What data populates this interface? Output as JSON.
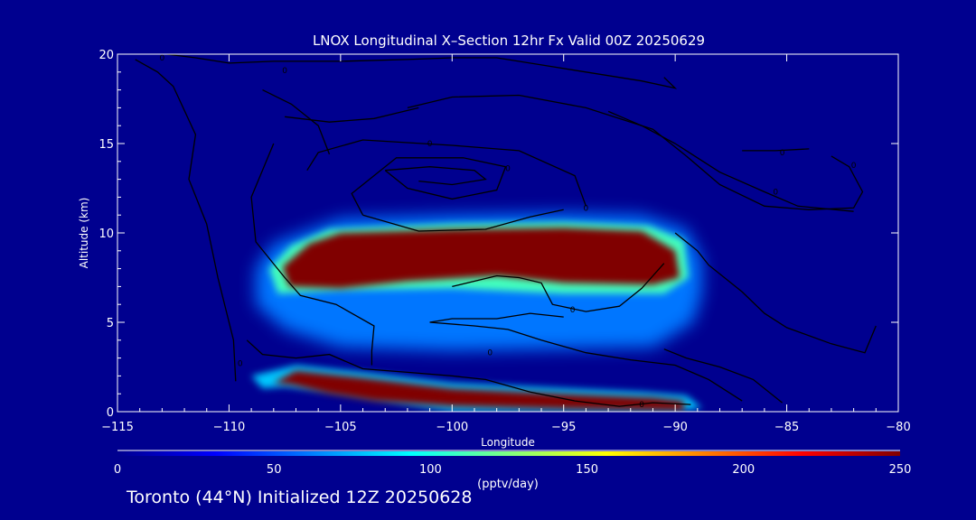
{
  "chart_data": {
    "type": "heatmap",
    "title": "LNOX Longitudinal X–Section 12hr  Fx Valid 00Z 20250629",
    "xlabel": "Longitude",
    "ylabel": "Altitude (km)",
    "xlim": [
      -115,
      -80
    ],
    "ylim": [
      0,
      20
    ],
    "x_ticks": [
      {
        "value": -115,
        "label": "−115"
      },
      {
        "value": -110,
        "label": "−110"
      },
      {
        "value": -105,
        "label": "−105"
      },
      {
        "value": -100,
        "label": "−100"
      },
      {
        "value": -95,
        "label": "−95"
      },
      {
        "value": -90,
        "label": "−90"
      },
      {
        "value": -85,
        "label": "−85"
      },
      {
        "value": -80,
        "label": "−80"
      }
    ],
    "y_ticks": [
      {
        "value": 0,
        "label": "0"
      },
      {
        "value": 5,
        "label": "5"
      },
      {
        "value": 10,
        "label": "10"
      },
      {
        "value": 15,
        "label": "15"
      },
      {
        "value": 20,
        "label": "20"
      }
    ],
    "colorbar": {
      "label": "(pptv/day)",
      "range": [
        0,
        250
      ],
      "ticks": [
        {
          "value": 0,
          "label": "0"
        },
        {
          "value": 50,
          "label": "50"
        },
        {
          "value": 100,
          "label": "100"
        },
        {
          "value": 150,
          "label": "150"
        },
        {
          "value": 200,
          "label": "200"
        },
        {
          "value": 250,
          "label": "250"
        }
      ],
      "colors": [
        "#00008f",
        "#0000ff",
        "#0080ff",
        "#00ffff",
        "#80ff80",
        "#ffff00",
        "#ff8000",
        "#ff0000",
        "#800000"
      ]
    },
    "field_regions": [
      {
        "name": "upper envelope",
        "value": 60,
        "points": [
          [
            -108.8,
            8.0
          ],
          [
            -108.0,
            9.4
          ],
          [
            -106.5,
            10.1
          ],
          [
            -105.0,
            10.8
          ],
          [
            -100.0,
            11.0
          ],
          [
            -95.0,
            11.1
          ],
          [
            -91.5,
            11.0
          ],
          [
            -89.5,
            10.2
          ],
          [
            -88.8,
            8.5
          ],
          [
            -88.8,
            6.6
          ],
          [
            -89.2,
            5.0
          ],
          [
            -91.0,
            3.6
          ],
          [
            -100.0,
            3.4
          ],
          [
            -105.0,
            3.6
          ],
          [
            -107.5,
            4.6
          ],
          [
            -108.8,
            6.0
          ]
        ]
      },
      {
        "name": "upper mid",
        "value": 110,
        "points": [
          [
            -108.2,
            8.0
          ],
          [
            -107.2,
            9.3
          ],
          [
            -105.5,
            10.2
          ],
          [
            -100.0,
            10.5
          ],
          [
            -95.0,
            10.6
          ],
          [
            -91.2,
            10.4
          ],
          [
            -89.6,
            9.6
          ],
          [
            -89.4,
            7.5
          ],
          [
            -90.5,
            6.6
          ],
          [
            -95.0,
            6.6
          ],
          [
            -100.0,
            6.9
          ],
          [
            -105.0,
            6.8
          ],
          [
            -107.8,
            6.6
          ]
        ]
      },
      {
        "name": "upper core",
        "value": 250,
        "points": [
          [
            -107.6,
            8.1
          ],
          [
            -106.4,
            9.4
          ],
          [
            -105.0,
            10.0
          ],
          [
            -100.0,
            10.2
          ],
          [
            -95.0,
            10.3
          ],
          [
            -91.5,
            10.1
          ],
          [
            -90.0,
            9.0
          ],
          [
            -89.8,
            7.5
          ],
          [
            -91.0,
            7.1
          ],
          [
            -95.0,
            7.2
          ],
          [
            -98.0,
            7.6
          ],
          [
            -102.0,
            7.3
          ],
          [
            -105.0,
            6.9
          ],
          [
            -107.3,
            7.0
          ]
        ]
      },
      {
        "name": "lower envelope",
        "value": 80,
        "points": [
          [
            -109.0,
            2.0
          ],
          [
            -107.0,
            2.6
          ],
          [
            -104.0,
            2.2
          ],
          [
            -100.0,
            1.6
          ],
          [
            -95.0,
            1.3
          ],
          [
            -91.5,
            1.1
          ],
          [
            -89.5,
            0.9
          ],
          [
            -88.8,
            0.2
          ],
          [
            -90.0,
            0.0
          ],
          [
            -100.0,
            0.0
          ],
          [
            -103.0,
            0.6
          ],
          [
            -105.5,
            1.1
          ],
          [
            -107.5,
            1.4
          ],
          [
            -108.5,
            1.3
          ]
        ]
      },
      {
        "name": "lower core",
        "value": 250,
        "points": [
          [
            -108.0,
            1.6
          ],
          [
            -107.0,
            2.3
          ],
          [
            -104.0,
            1.9
          ],
          [
            -100.0,
            1.3
          ],
          [
            -95.0,
            1.0
          ],
          [
            -91.0,
            0.8
          ],
          [
            -89.6,
            0.6
          ],
          [
            -89.6,
            0.05
          ],
          [
            -95.0,
            0.15
          ],
          [
            -100.0,
            0.3
          ],
          [
            -103.5,
            0.6
          ],
          [
            -105.5,
            1.0
          ],
          [
            -107.2,
            1.5
          ]
        ]
      }
    ],
    "contours": [
      {
        "points": [
          [
            -114.2,
            19.7
          ],
          [
            -113.2,
            19.0
          ],
          [
            -112.5,
            18.2
          ],
          [
            -111.5,
            15.5
          ],
          [
            -111.8,
            13.0
          ],
          [
            -111.0,
            10.5
          ],
          [
            -110.5,
            7.5
          ],
          [
            -109.8,
            4.0
          ],
          [
            -109.7,
            1.7
          ]
        ]
      },
      {
        "points": [
          [
            -112.8,
            20.0
          ],
          [
            -111.5,
            19.8
          ],
          [
            -110.0,
            19.5
          ],
          [
            -108.0,
            19.6
          ],
          [
            -105.0,
            19.6
          ],
          [
            -102.0,
            19.7
          ],
          [
            -100.0,
            19.8
          ],
          [
            -98.0,
            19.8
          ],
          [
            -96.0,
            19.4
          ],
          [
            -94.0,
            19.0
          ],
          [
            -91.5,
            18.5
          ],
          [
            -90.0,
            18.1
          ],
          [
            -90.5,
            18.7
          ]
        ]
      },
      {
        "points": [
          [
            -102.0,
            17.0
          ],
          [
            -100.0,
            17.6
          ],
          [
            -97.0,
            17.7
          ],
          [
            -94.0,
            17.0
          ],
          [
            -91.0,
            15.8
          ],
          [
            -89.5,
            14.3
          ]
        ]
      },
      {
        "points": [
          [
            -106.5,
            13.5
          ],
          [
            -106.0,
            14.5
          ],
          [
            -104.0,
            15.2
          ],
          [
            -100.0,
            14.9
          ],
          [
            -97.0,
            14.6
          ],
          [
            -94.5,
            13.2
          ],
          [
            -94.0,
            11.5
          ]
        ]
      },
      {
        "points": [
          [
            -104.0,
            11.0
          ],
          [
            -104.5,
            12.2
          ],
          [
            -102.5,
            14.2
          ],
          [
            -99.5,
            14.2
          ],
          [
            -97.6,
            13.7
          ],
          [
            -98.0,
            12.4
          ],
          [
            -100.0,
            11.9
          ],
          [
            -102.0,
            12.5
          ],
          [
            -103.0,
            13.5
          ]
        ]
      },
      {
        "points": [
          [
            -103.0,
            13.5
          ],
          [
            -101.0,
            13.7
          ],
          [
            -99.0,
            13.5
          ],
          [
            -98.5,
            13.0
          ],
          [
            -100.0,
            12.7
          ],
          [
            -101.5,
            12.9
          ]
        ]
      },
      {
        "points": [
          [
            -104.0,
            11.0
          ],
          [
            -101.5,
            10.1
          ],
          [
            -98.5,
            10.2
          ],
          [
            -96.5,
            10.9
          ],
          [
            -95.0,
            11.3
          ]
        ]
      },
      {
        "points": [
          [
            -108.0,
            15.0
          ],
          [
            -109.0,
            12.0
          ],
          [
            -108.8,
            9.5
          ],
          [
            -107.5,
            7.5
          ],
          [
            -106.8,
            6.5
          ],
          [
            -105.2,
            6.0
          ],
          [
            -103.5,
            4.8
          ],
          [
            -103.6,
            3.4
          ],
          [
            -103.6,
            2.6
          ]
        ]
      },
      {
        "points": [
          [
            -109.2,
            4.0
          ],
          [
            -108.5,
            3.2
          ],
          [
            -107.0,
            3.0
          ],
          [
            -105.5,
            3.2
          ],
          [
            -104.0,
            2.4
          ],
          [
            -102.0,
            2.2
          ],
          [
            -100.0,
            2.0
          ],
          [
            -98.5,
            1.8
          ],
          [
            -96.5,
            1.1
          ],
          [
            -94.5,
            0.6
          ],
          [
            -92.5,
            0.3
          ],
          [
            -91.0,
            0.5
          ],
          [
            -89.3,
            0.4
          ]
        ]
      },
      {
        "points": [
          [
            -107.5,
            16.5
          ],
          [
            -105.5,
            16.2
          ],
          [
            -103.5,
            16.4
          ],
          [
            -101.5,
            17.0
          ]
        ]
      },
      {
        "points": [
          [
            -101.0,
            5.0
          ],
          [
            -99.0,
            4.8
          ],
          [
            -97.5,
            4.6
          ],
          [
            -96.0,
            4.0
          ],
          [
            -94.0,
            3.3
          ],
          [
            -92.0,
            2.9
          ],
          [
            -90.0,
            2.6
          ],
          [
            -88.5,
            1.8
          ],
          [
            -87.0,
            0.6
          ]
        ]
      },
      {
        "points": [
          [
            -101.0,
            5.0
          ],
          [
            -100.0,
            5.2
          ],
          [
            -98.0,
            5.2
          ],
          [
            -96.5,
            5.5
          ],
          [
            -95.0,
            5.3
          ]
        ]
      },
      {
        "points": [
          [
            -100.0,
            7.0
          ],
          [
            -98.0,
            7.6
          ],
          [
            -97.0,
            7.5
          ],
          [
            -96.0,
            7.2
          ],
          [
            -95.5,
            6.0
          ],
          [
            -94.0,
            5.6
          ],
          [
            -92.5,
            5.9
          ],
          [
            -91.5,
            6.9
          ],
          [
            -90.5,
            8.3
          ]
        ]
      },
      {
        "points": [
          [
            -108.5,
            18.0
          ],
          [
            -107.2,
            17.2
          ],
          [
            -106.0,
            16.0
          ],
          [
            -105.5,
            14.4
          ]
        ]
      },
      {
        "points": [
          [
            -93.0,
            16.8
          ],
          [
            -91.5,
            16.0
          ],
          [
            -90.0,
            15.0
          ],
          [
            -88.0,
            13.4
          ],
          [
            -86.0,
            12.3
          ],
          [
            -84.5,
            11.5
          ],
          [
            -82.0,
            11.2
          ]
        ]
      },
      {
        "points": [
          [
            -89.5,
            14.3
          ],
          [
            -88.0,
            12.7
          ],
          [
            -86.0,
            11.5
          ],
          [
            -84.0,
            11.3
          ],
          [
            -82.0,
            11.4
          ],
          [
            -81.6,
            12.3
          ],
          [
            -82.2,
            13.7
          ],
          [
            -83.0,
            14.3
          ]
        ]
      },
      {
        "points": [
          [
            -87.0,
            14.6
          ],
          [
            -85.5,
            14.6
          ],
          [
            -84.0,
            14.7
          ]
        ]
      },
      {
        "points": [
          [
            -90.0,
            10.0
          ],
          [
            -89.0,
            9.0
          ],
          [
            -88.5,
            8.2
          ],
          [
            -87.0,
            6.7
          ],
          [
            -86.0,
            5.5
          ],
          [
            -85.0,
            4.7
          ],
          [
            -83.0,
            3.8
          ],
          [
            -81.5,
            3.3
          ],
          [
            -81.0,
            4.8
          ]
        ]
      },
      {
        "points": [
          [
            -90.5,
            3.5
          ],
          [
            -89.5,
            3.0
          ],
          [
            -88.0,
            2.5
          ],
          [
            -86.5,
            1.8
          ],
          [
            -85.2,
            0.5
          ]
        ]
      }
    ],
    "contour_labels": [
      {
        "x": -113.0,
        "y": 19.8,
        "text": "0"
      },
      {
        "x": -97.5,
        "y": 13.6,
        "text": "0"
      },
      {
        "x": -94.0,
        "y": 11.4,
        "text": "0"
      },
      {
        "x": -101.0,
        "y": 15.0,
        "text": "0"
      },
      {
        "x": -94.6,
        "y": 5.7,
        "text": "0"
      },
      {
        "x": -98.3,
        "y": 3.3,
        "text": "0"
      },
      {
        "x": -91.5,
        "y": 0.4,
        "text": "0"
      },
      {
        "x": -85.2,
        "y": 14.5,
        "text": "0"
      },
      {
        "x": -82.0,
        "y": 13.8,
        "text": "0"
      },
      {
        "x": -85.5,
        "y": 12.3,
        "text": "0"
      },
      {
        "x": -109.5,
        "y": 2.7,
        "text": "0"
      },
      {
        "x": -107.5,
        "y": 19.1,
        "text": "0"
      }
    ]
  },
  "footer": {
    "text": "Toronto (44°N) Initialized 12Z 20250628"
  }
}
